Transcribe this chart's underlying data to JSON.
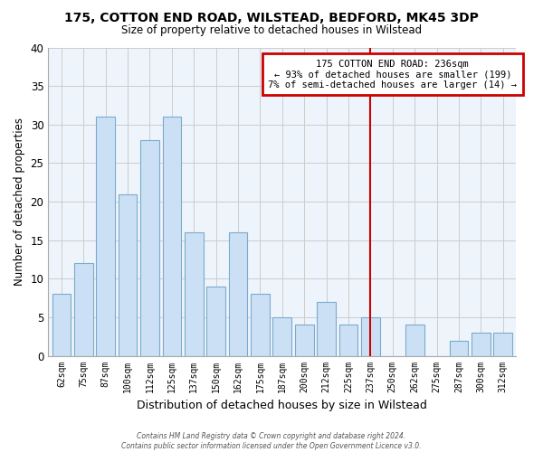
{
  "title": "175, COTTON END ROAD, WILSTEAD, BEDFORD, MK45 3DP",
  "subtitle": "Size of property relative to detached houses in Wilstead",
  "xlabel": "Distribution of detached houses by size in Wilstead",
  "ylabel": "Number of detached properties",
  "bar_labels": [
    "62sqm",
    "75sqm",
    "87sqm",
    "100sqm",
    "112sqm",
    "125sqm",
    "137sqm",
    "150sqm",
    "162sqm",
    "175sqm",
    "187sqm",
    "200sqm",
    "212sqm",
    "225sqm",
    "237sqm",
    "250sqm",
    "262sqm",
    "275sqm",
    "287sqm",
    "300sqm",
    "312sqm"
  ],
  "bar_values": [
    8,
    12,
    31,
    21,
    28,
    31,
    16,
    9,
    16,
    8,
    5,
    4,
    7,
    4,
    5,
    0,
    4,
    0,
    2,
    3,
    3
  ],
  "bar_color": "#cce0f5",
  "bar_edge_color": "#7aabcc",
  "vline_x_index": 14,
  "vline_color": "#cc0000",
  "ylim": [
    0,
    40
  ],
  "yticks": [
    0,
    5,
    10,
    15,
    20,
    25,
    30,
    35,
    40
  ],
  "annotation_title": "175 COTTON END ROAD: 236sqm",
  "annotation_line1": "← 93% of detached houses are smaller (199)",
  "annotation_line2": "7% of semi-detached houses are larger (14) →",
  "annotation_box_color": "#ffffff",
  "annotation_box_edge": "#cc0000",
  "footer1": "Contains HM Land Registry data © Crown copyright and database right 2024.",
  "footer2": "Contains public sector information licensed under the Open Government Licence v3.0.",
  "background_color": "#ffffff",
  "grid_color": "#cccccc",
  "plot_bg_color": "#eef4fb"
}
